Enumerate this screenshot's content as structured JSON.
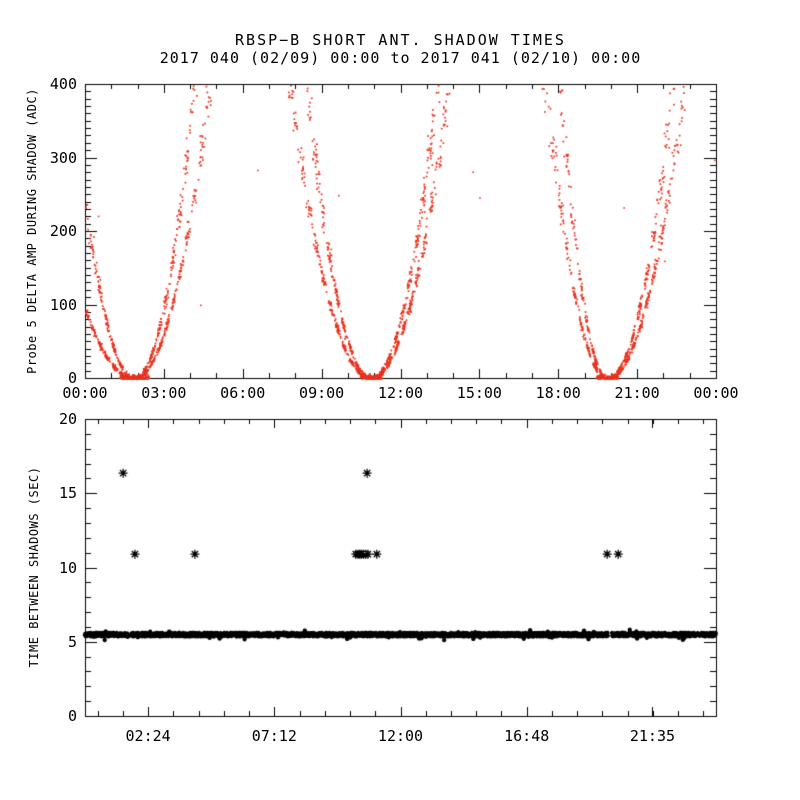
{
  "header": {
    "title": "RBSP−B SHORT ANT. SHADOW TIMES",
    "subtitle": "2017 040 (02/09) 00:00 to 2017 041 (02/10) 00:00"
  },
  "colors": {
    "scatter_red": "#e8321e",
    "scatter_black": "#000000",
    "axis": "#000000",
    "background": "#ffffff"
  },
  "chart_data": [
    {
      "id": "delta_amp",
      "type": "scatter",
      "marker": "dot",
      "color_key": "scatter_red",
      "ylabel": "Probe 5 DELTA AMP DURING SHADOW (ADC)",
      "xlim_hours": [
        0,
        24
      ],
      "ylim": [
        0,
        400
      ],
      "grid": false,
      "yticks": {
        "major": [
          0,
          100,
          200,
          300,
          400
        ],
        "labels": [
          "0",
          "100",
          "200",
          "300",
          "400"
        ],
        "minor_step": 10
      },
      "xticks": {
        "major_hours": [
          0,
          3,
          6,
          9,
          12,
          15,
          18,
          21,
          24
        ],
        "labels": [
          "00:00",
          "03:00",
          "06:00",
          "09:00",
          "12:00",
          "15:00",
          "18:00",
          "21:00",
          "00:00"
        ],
        "minor_step_hours": 1
      },
      "series_model": {
        "description": "Dense red dot scatter forming three V-shaped shadow-amplitude envelopes; each branch is made of two near-parallel traces which converge to 0 ADC at the minima (~01:51, ~10:51, ~19:51) and climb past the 400 ADC top of the panel.",
        "amplitude_adc": 400,
        "events": [
          {
            "center_hour": 1.85,
            "left_widths_hours": [
              2.4,
              3.85
            ],
            "right_widths_hours": [
              2.3,
              2.9
            ],
            "bottom_halfwidth_hours": 0.55
          },
          {
            "center_hour": 10.85,
            "left_widths_hours": [
              2.45,
              3.1
            ],
            "right_widths_hours": [
              2.55,
              3.0
            ],
            "bottom_halfwidth_hours": 0.4
          },
          {
            "center_hour": 19.85,
            "left_widths_hours": [
              1.8,
              2.35
            ],
            "right_widths_hours": [
              2.5,
              2.95
            ],
            "bottom_halfwidth_hours": 0.4
          }
        ],
        "point_step_hours": 0.0045,
        "stray_point_count": 12
      }
    },
    {
      "id": "time_between_shadows",
      "type": "scatter",
      "marker": "asterisk",
      "color_key": "scatter_black",
      "ylabel": "TIME BETWEEN SHADOWS (SEC)",
      "xlim_hours": [
        0,
        24
      ],
      "ylim": [
        0,
        20
      ],
      "grid": false,
      "yticks": {
        "major": [
          0,
          5,
          10,
          15,
          20
        ],
        "labels": [
          "0",
          "5",
          "10",
          "15",
          "20"
        ],
        "minor_step": 1
      },
      "xticks": {
        "major_hours": [
          2.4,
          7.2,
          12.0,
          16.8,
          21.5833
        ],
        "labels": [
          "02:24",
          "07:12",
          "12:00",
          "16:48",
          "21:35"
        ],
        "minor_step_hours": 0.96
      },
      "band": {
        "value_sec": 5.48,
        "jitter_sec": 0.12,
        "start_hour": 0.0,
        "end_hour": 24.0,
        "gap_hours": [
          [
            1.64,
            1.73
          ],
          [
            19.89,
            20.05
          ]
        ],
        "point_step_hours": 0.01
      },
      "outliers": [
        {
          "hour": 1.45,
          "sec": 16.35
        },
        {
          "hour": 1.9,
          "sec": 10.9
        },
        {
          "hour": 4.18,
          "sec": 10.9
        },
        {
          "hour": 10.73,
          "sec": 16.35
        },
        {
          "hour": 10.3,
          "sec": 10.9
        },
        {
          "hour": 10.38,
          "sec": 10.9
        },
        {
          "hour": 10.45,
          "sec": 10.9
        },
        {
          "hour": 10.52,
          "sec": 10.9
        },
        {
          "hour": 10.6,
          "sec": 10.9
        },
        {
          "hour": 10.68,
          "sec": 10.9
        },
        {
          "hour": 10.76,
          "sec": 10.9
        },
        {
          "hour": 11.1,
          "sec": 10.9
        },
        {
          "hour": 19.86,
          "sec": 10.9
        },
        {
          "hour": 20.28,
          "sec": 10.9
        }
      ]
    }
  ]
}
